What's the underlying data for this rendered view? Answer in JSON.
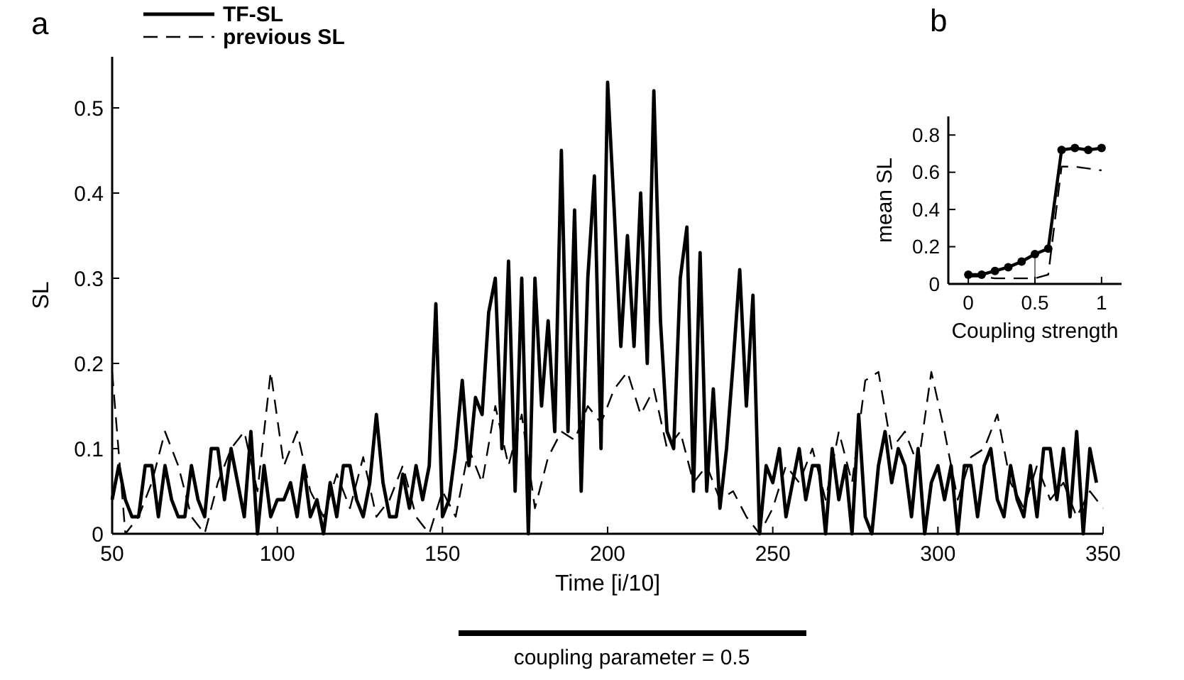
{
  "chart_data": [
    {
      "type": "line",
      "xlabel": "Time [i/10]",
      "ylabel": "SL",
      "xlim": [
        50,
        350
      ],
      "ylim": [
        0,
        0.56
      ],
      "xticks": [
        50,
        100,
        150,
        200,
        250,
        300,
        350
      ],
      "yticks": [
        0,
        0.1,
        0.2,
        0.3,
        0.4,
        0.5
      ],
      "legend": "top left",
      "annotations": [
        "a",
        "coupling parameter = 0.5"
      ],
      "series": [
        {
          "name": "TF-SL",
          "color": "#000000",
          "line_style": "solid",
          "x": [
            50,
            52,
            54,
            56,
            58,
            60,
            62,
            64,
            66,
            68,
            70,
            72,
            74,
            76,
            78,
            80,
            82,
            84,
            86,
            88,
            90,
            92,
            94,
            96,
            98,
            100,
            102,
            104,
            106,
            108,
            110,
            112,
            114,
            116,
            118,
            120,
            122,
            124,
            126,
            128,
            130,
            132,
            134,
            136,
            138,
            140,
            142,
            144,
            146,
            148,
            150,
            152,
            154,
            156,
            158,
            160,
            162,
            164,
            166,
            168,
            170,
            172,
            174,
            176,
            178,
            180,
            182,
            184,
            186,
            188,
            190,
            192,
            194,
            196,
            198,
            200,
            202,
            204,
            206,
            208,
            210,
            212,
            214,
            216,
            218,
            220,
            222,
            224,
            226,
            228,
            230,
            232,
            234,
            236,
            238,
            240,
            242,
            244,
            246,
            248,
            250,
            252,
            254,
            256,
            258,
            260,
            262,
            264,
            266,
            268,
            270,
            272,
            274,
            276,
            278,
            280,
            282,
            284,
            286,
            288,
            290,
            292,
            294,
            296,
            298,
            300,
            302,
            304,
            306,
            308,
            310,
            312,
            314,
            316,
            318,
            320,
            322,
            324,
            326,
            328,
            330,
            332,
            334,
            336,
            338,
            340,
            342,
            344,
            346,
            348
          ],
          "values": [
            0.04,
            0.08,
            0.04,
            0.02,
            0.02,
            0.08,
            0.08,
            0.02,
            0.08,
            0.04,
            0.02,
            0.02,
            0.08,
            0.04,
            0.02,
            0.1,
            0.1,
            0.04,
            0.1,
            0.06,
            0.02,
            0.12,
            0,
            0.08,
            0.02,
            0.04,
            0.04,
            0.06,
            0.02,
            0.08,
            0.02,
            0.04,
            0,
            0.06,
            0.02,
            0.08,
            0.08,
            0.04,
            0.02,
            0.06,
            0.14,
            0.06,
            0.02,
            0.02,
            0.07,
            0.03,
            0.08,
            0.04,
            0.08,
            0.27,
            0.02,
            0.04,
            0.1,
            0.18,
            0.08,
            0.16,
            0.14,
            0.26,
            0.3,
            0.1,
            0.32,
            0.05,
            0.3,
            0,
            0.3,
            0.15,
            0.25,
            0.12,
            0.45,
            0.12,
            0.38,
            0.05,
            0.3,
            0.42,
            0.1,
            0.53,
            0.38,
            0.22,
            0.35,
            0.22,
            0.4,
            0.2,
            0.52,
            0.25,
            0.12,
            0.1,
            0.3,
            0.36,
            0.05,
            0.33,
            0.05,
            0.17,
            0.03,
            0.1,
            0.2,
            0.31,
            0.15,
            0.28,
            0,
            0.08,
            0.06,
            0.1,
            0.02,
            0.06,
            0.1,
            0.04,
            0.08,
            0.08,
            0,
            0.1,
            0.04,
            0.08,
            0,
            0.14,
            0.02,
            0,
            0.08,
            0.12,
            0.06,
            0.1,
            0.08,
            0.02,
            0.1,
            0,
            0.06,
            0.08,
            0.04,
            0.08,
            0,
            0.08,
            0.08,
            0.02,
            0.08,
            0.1,
            0.04,
            0.02,
            0.08,
            0.04,
            0.02,
            0.08,
            0.02,
            0.1,
            0.1,
            0.04,
            0.1,
            0.02,
            0.12,
            0,
            0.1,
            0.06
          ]
        },
        {
          "name": "previous SL",
          "color": "#000000",
          "line_style": "dashed",
          "x": [
            50,
            54,
            58,
            62,
            66,
            70,
            74,
            78,
            82,
            86,
            90,
            94,
            98,
            102,
            106,
            110,
            114,
            118,
            122,
            126,
            130,
            134,
            138,
            142,
            146,
            150,
            154,
            158,
            162,
            166,
            170,
            174,
            178,
            182,
            186,
            190,
            194,
            198,
            202,
            206,
            210,
            214,
            218,
            222,
            226,
            230,
            234,
            238,
            242,
            246,
            250,
            254,
            258,
            262,
            266,
            270,
            274,
            278,
            282,
            286,
            290,
            294,
            298,
            302,
            306,
            310,
            314,
            318,
            322,
            326,
            330,
            334,
            338,
            342,
            346,
            350
          ],
          "values": [
            0.19,
            0,
            0.02,
            0.06,
            0.12,
            0.08,
            0.02,
            0,
            0.06,
            0.1,
            0.12,
            0.05,
            0.19,
            0.08,
            0.12,
            0.05,
            0.02,
            0.07,
            0.03,
            0.09,
            0.02,
            0.04,
            0.08,
            0.02,
            0,
            0.05,
            0.02,
            0.1,
            0.06,
            0.15,
            0.08,
            0.14,
            0.03,
            0.09,
            0.12,
            0.11,
            0.15,
            0.13,
            0.17,
            0.19,
            0.14,
            0.17,
            0.1,
            0.12,
            0.06,
            0.08,
            0.04,
            0.05,
            0.02,
            0,
            0.03,
            0.08,
            0.06,
            0.1,
            0.04,
            0.12,
            0.06,
            0.18,
            0.19,
            0.1,
            0.12,
            0.08,
            0.19,
            0.12,
            0.04,
            0.09,
            0.1,
            0.14,
            0.06,
            0.03,
            0.08,
            0.04,
            0.06,
            0.02,
            0.05,
            0.03
          ]
        }
      ]
    },
    {
      "type": "line",
      "xlabel": "Coupling strength",
      "ylabel": "mean SL",
      "xlim": [
        -0.15,
        1.15
      ],
      "ylim": [
        0,
        0.9
      ],
      "xticks": [
        0,
        0.5,
        1
      ],
      "yticks": [
        0,
        0.2,
        0.4,
        0.6,
        0.8
      ],
      "legend": false,
      "annotations": [
        "b"
      ],
      "ref_lines": [
        {
          "axis": "x",
          "value": 0.5,
          "color": "#777777"
        }
      ],
      "x": [
        0,
        0.1,
        0.2,
        0.3,
        0.4,
        0.5,
        0.6,
        0.7,
        0.8,
        0.9,
        1
      ],
      "series": [
        {
          "color": "#000000",
          "line_style": "solid",
          "marker": "circle",
          "values": [
            0.05,
            0.05,
            0.07,
            0.09,
            0.12,
            0.16,
            0.19,
            0.72,
            0.73,
            0.72,
            0.73
          ]
        },
        {
          "color": "#000000",
          "line_style": "dashed",
          "marker": "none",
          "values": [
            0.04,
            0.04,
            0.03,
            0.03,
            0.03,
            0.03,
            0.05,
            0.63,
            0.63,
            0.62,
            0.61
          ]
        }
      ]
    }
  ]
}
